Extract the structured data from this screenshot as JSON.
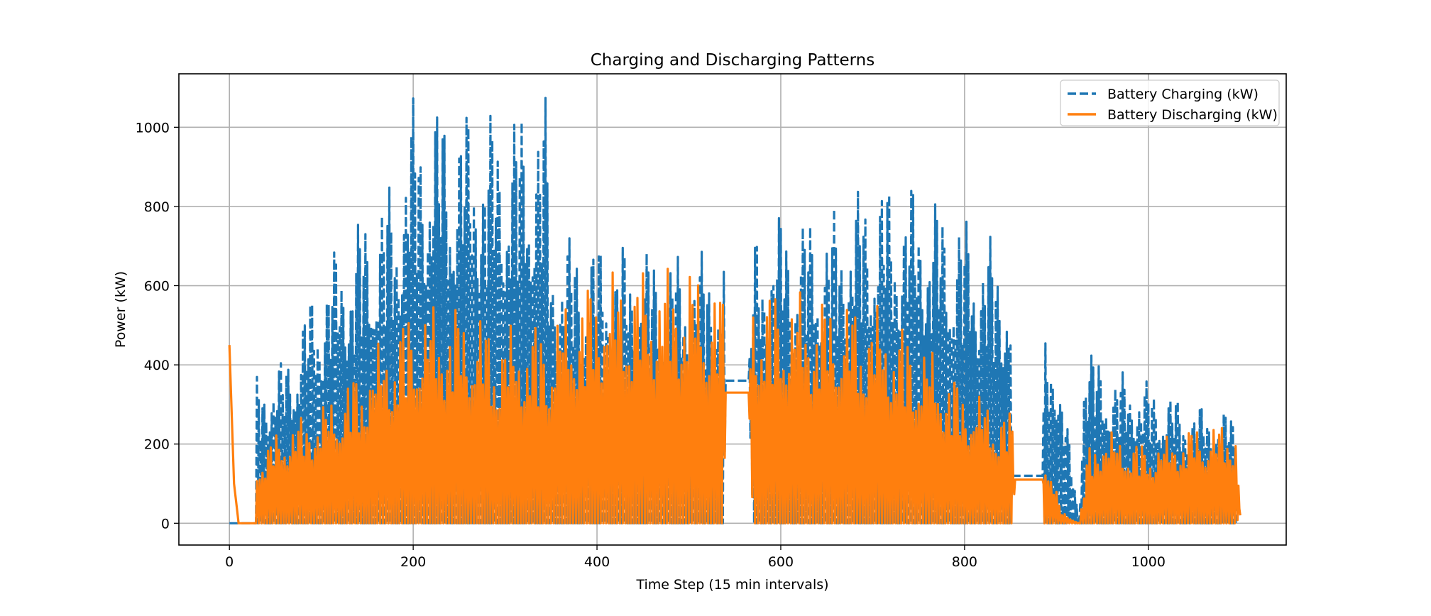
{
  "chart_data": {
    "type": "line",
    "title": "Charging and Discharging Patterns",
    "xlabel": "Time Step (15 min intervals)",
    "ylabel": "Power (kW)",
    "xlim": [
      -55,
      1150
    ],
    "ylim": [
      -55,
      1135
    ],
    "xticks": [
      0,
      200,
      400,
      600,
      800,
      1000
    ],
    "yticks": [
      0,
      200,
      400,
      600,
      800,
      1000
    ],
    "grid": true,
    "legend_position": "upper right",
    "series": [
      {
        "name": "Battery Charging (kW)",
        "color": "#1f77b4",
        "style": "dashed",
        "pattern": "oscillating",
        "x": [
          0,
          28,
          28.5,
          60,
          100,
          150,
          180,
          200,
          240,
          280,
          320,
          345,
          350,
          400,
          450,
          500,
          538,
          540,
          565,
          570,
          600,
          650,
          700,
          750,
          800,
          850,
          852,
          885,
          887,
          900,
          925,
          930,
          950,
          1000,
          1050,
          1095
        ],
        "envelope": [
          0,
          0,
          370,
          420,
          650,
          800,
          880,
          1080,
          1070,
          1040,
          1060,
          1080,
          740,
          720,
          700,
          680,
          700,
          360,
          360,
          720,
          790,
          780,
          880,
          860,
          780,
          680,
          120,
          120,
          470,
          470,
          0,
          480,
          400,
          360,
          300,
          280
        ],
        "base": [
          0,
          0,
          0,
          0,
          0,
          0,
          0,
          0,
          0,
          0,
          0,
          0,
          0,
          0,
          0,
          0,
          0,
          360,
          360,
          0,
          0,
          0,
          0,
          0,
          0,
          0,
          120,
          120,
          0,
          0,
          0,
          0,
          0,
          0,
          0,
          0
        ],
        "period": 2
      },
      {
        "name": "Battery Discharging (kW)",
        "color": "#ff7f0e",
        "style": "solid",
        "pattern": "oscillating",
        "x": [
          0,
          5,
          10,
          28,
          28.5,
          60,
          100,
          150,
          200,
          250,
          300,
          350,
          380,
          400,
          450,
          500,
          538,
          540,
          565,
          570,
          600,
          650,
          700,
          750,
          800,
          852,
          855,
          885,
          887,
          905,
          925,
          935,
          950,
          1000,
          1050,
          1095,
          1100
        ],
        "envelope": [
          450,
          100,
          0,
          0,
          180,
          250,
          300,
          420,
          560,
          560,
          500,
          520,
          600,
          640,
          650,
          660,
          600,
          330,
          330,
          620,
          600,
          580,
          560,
          480,
          350,
          280,
          110,
          110,
          230,
          30,
          0,
          200,
          240,
          200,
          250,
          260,
          20
        ],
        "base": [
          450,
          100,
          0,
          0,
          0,
          0,
          0,
          0,
          0,
          0,
          0,
          0,
          0,
          0,
          0,
          0,
          0,
          330,
          330,
          0,
          0,
          0,
          0,
          0,
          0,
          0,
          110,
          110,
          0,
          0,
          0,
          0,
          0,
          0,
          0,
          0,
          20
        ],
        "period": 3
      }
    ]
  }
}
